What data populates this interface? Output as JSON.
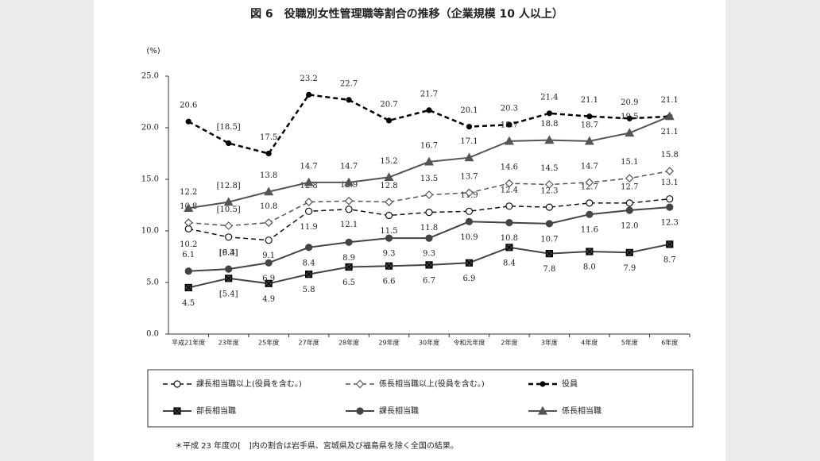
{
  "chart_data": {
    "type": "line",
    "title": "図 6　役職別女性管理職等割合の推移（企業規模 10 人以上）",
    "y_label": "(%)",
    "footnote": "＊平成 23 年度の[　]内の割合は岩手県、宮城県及び福島県を除く全国の結果。",
    "categories": [
      "平成21年度",
      "23年度",
      "25年度",
      "27年度",
      "28年度",
      "29年度",
      "30年度",
      "令和元年度",
      "2年度",
      "3年度",
      "4年度",
      "5年度",
      "6年度"
    ],
    "ylim": [
      0,
      25
    ],
    "yticks": [
      {
        "value": 0,
        "label": "0.0"
      },
      {
        "value": 5,
        "label": "5.0"
      },
      {
        "value": 10,
        "label": "10.0"
      },
      {
        "value": 15,
        "label": "15.0"
      },
      {
        "value": 20,
        "label": "20.0"
      },
      {
        "value": 25,
        "label": "25.0"
      }
    ],
    "series": [
      {
        "name": "課長相当職以上(役員を含む。)",
        "color": "#111111",
        "marker": "open-circle",
        "line_style": "dashed",
        "values": [
          10.2,
          9.4,
          9.1,
          11.9,
          12.1,
          11.5,
          11.8,
          11.9,
          12.4,
          12.3,
          12.7,
          12.7,
          13.1
        ],
        "value_labels": [
          "10.2",
          "[9.4]",
          "9.1",
          "11.9",
          "12.1",
          "11.5",
          "11.8",
          "11.9",
          "12.4",
          "12.3",
          "12.7",
          "12.7",
          "13.1"
        ]
      },
      {
        "name": "係長相当職以上(役員を含む。)",
        "color": "#555555",
        "marker": "open-diamond",
        "line_style": "dashed",
        "values": [
          10.8,
          10.5,
          10.8,
          12.8,
          12.9,
          12.8,
          13.5,
          13.7,
          14.6,
          14.5,
          14.7,
          15.1,
          15.8
        ],
        "value_labels": [
          "10.8",
          "[10.5]",
          "10.8",
          "12.8",
          "12.9",
          "12.8",
          "13.5",
          "13.7",
          "14.6",
          "14.5",
          "14.7",
          "15.1",
          "15.8"
        ]
      },
      {
        "name": "役員",
        "color": "#000000",
        "marker": "small-dot",
        "line_style": "bold-dashed",
        "values": [
          20.6,
          18.5,
          17.5,
          23.2,
          22.7,
          20.7,
          21.7,
          20.1,
          20.3,
          21.4,
          21.1,
          20.9,
          21.1
        ],
        "value_labels": [
          "20.6",
          "[18.5]",
          "17.5",
          "23.2",
          "22.7",
          "20.7",
          "21.7",
          "20.1",
          "20.3",
          "21.4",
          "21.1",
          "20.9",
          "21.1"
        ]
      },
      {
        "name": "部長相当職",
        "color": "#444444",
        "marker": "square",
        "line_style": "solid",
        "values": [
          4.5,
          5.4,
          4.9,
          5.8,
          6.5,
          6.6,
          6.7,
          6.9,
          8.4,
          7.8,
          8.0,
          7.9,
          8.7
        ],
        "value_labels": [
          "4.5",
          "[5.4]",
          "4.9",
          "5.8",
          "6.5",
          "6.6",
          "6.7",
          "6.9",
          "8.4",
          "7.8",
          "8.0",
          "7.9",
          "8.7"
        ]
      },
      {
        "name": "課長相当職",
        "color": "#444444",
        "marker": "dot",
        "line_style": "solid",
        "values": [
          6.1,
          6.3,
          6.9,
          8.4,
          8.9,
          9.3,
          9.3,
          10.9,
          10.8,
          10.7,
          11.6,
          12.0,
          12.3
        ],
        "value_labels": [
          "6.1",
          "[6.3]",
          "6.9",
          "8.4",
          "8.9",
          "9.3",
          "9.3",
          "10.9",
          "10.8",
          "10.7",
          "11.6",
          "12.0",
          "12.3"
        ]
      },
      {
        "name": "係長相当職",
        "color": "#555555",
        "marker": "triangle",
        "line_style": "solid",
        "values": [
          12.2,
          12.8,
          13.8,
          14.7,
          14.7,
          15.2,
          16.7,
          17.1,
          18.7,
          18.8,
          18.7,
          19.5,
          21.1
        ],
        "value_labels": [
          "12.2",
          "[12.8]",
          "13.8",
          "14.7",
          "14.7",
          "15.2",
          "16.7",
          "17.1",
          "18.7",
          "18.8",
          "18.7",
          "19.5",
          "21.1"
        ]
      }
    ]
  }
}
